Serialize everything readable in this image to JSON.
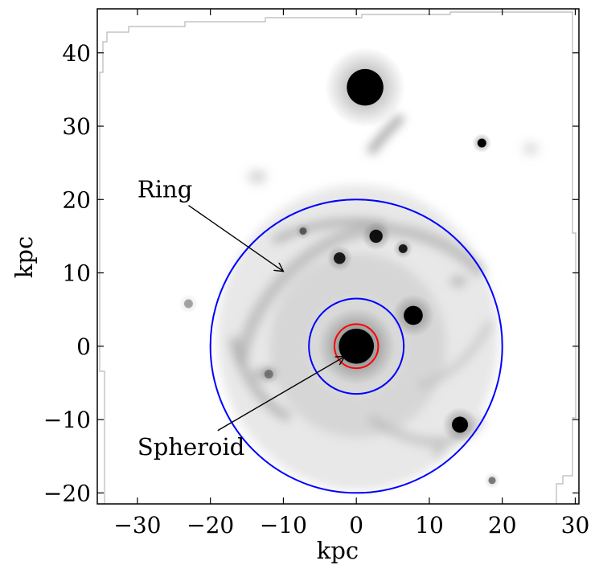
{
  "plot": {
    "xlabel": "kpc",
    "ylabel": "kpc",
    "xlim": [
      -35.5,
      30.5
    ],
    "ylim": [
      -21.5,
      46
    ],
    "xticks": [
      {
        "value": -30,
        "label": "−30"
      },
      {
        "value": -20,
        "label": "−20"
      },
      {
        "value": -10,
        "label": "−10"
      },
      {
        "value": 0,
        "label": "0"
      },
      {
        "value": 10,
        "label": "10"
      },
      {
        "value": 20,
        "label": "20"
      },
      {
        "value": 30,
        "label": "30"
      }
    ],
    "yticks": [
      {
        "value": -20,
        "label": "−20"
      },
      {
        "value": -10,
        "label": "−10"
      },
      {
        "value": 0,
        "label": "0"
      },
      {
        "value": 10,
        "label": "10"
      },
      {
        "value": 20,
        "label": "20"
      },
      {
        "value": 30,
        "label": "30"
      },
      {
        "value": 40,
        "label": "40"
      }
    ]
  },
  "apertures": [
    {
      "name": "outer-ring-aperture",
      "center": [
        0,
        0
      ],
      "radius_kpc": 20,
      "color": "#0000ff"
    },
    {
      "name": "inner-ring-aperture",
      "center": [
        0,
        0
      ],
      "radius_kpc": 6.5,
      "color": "#0000ff"
    },
    {
      "name": "spheroid-aperture",
      "center": [
        0,
        0
      ],
      "radius_kpc": 3,
      "color": "#ff0000"
    }
  ],
  "annotations": [
    {
      "name": "ring-annotation",
      "label": "Ring",
      "text_at": [
        -30,
        20.3
      ],
      "arrow_from": [
        -23,
        19.2
      ],
      "arrow_to": [
        -10,
        10.2
      ]
    },
    {
      "name": "spheroid-annotation",
      "label": "Spheroid",
      "text_at": [
        -30,
        -14.8
      ],
      "arrow_from": [
        -19,
        -11.5
      ],
      "arrow_to": [
        -1.6,
        -1.4
      ]
    }
  ],
  "sources": [
    {
      "name": "galaxy-core",
      "x": 0,
      "y": 0,
      "r": 2.4,
      "opacity": 1
    },
    {
      "name": "bright-star-top",
      "x": 1.2,
      "y": 35.3,
      "r": 2.5,
      "opacity": 1
    },
    {
      "name": "star-right-upper",
      "x": 17.2,
      "y": 27.7,
      "r": 0.6,
      "opacity": 1
    },
    {
      "name": "star-right-mid",
      "x": 7.8,
      "y": 4.2,
      "r": 1.3,
      "opacity": 1
    },
    {
      "name": "star-lower-right",
      "x": 14.2,
      "y": -10.7,
      "r": 1.1,
      "opacity": 1
    },
    {
      "name": "knot-1",
      "x": 2.7,
      "y": 15.0,
      "r": 0.9,
      "opacity": 0.9
    },
    {
      "name": "knot-2",
      "x": -2.3,
      "y": 12.0,
      "r": 0.8,
      "opacity": 0.85
    },
    {
      "name": "knot-3",
      "x": 6.4,
      "y": 13.3,
      "r": 0.6,
      "opacity": 0.85
    },
    {
      "name": "knot-4",
      "x": -7.3,
      "y": 15.7,
      "r": 0.5,
      "opacity": 0.5
    },
    {
      "name": "knot-5",
      "x": 18.6,
      "y": -18.3,
      "r": 0.5,
      "opacity": 0.45
    },
    {
      "name": "knot-6",
      "x": -23.0,
      "y": 5.8,
      "r": 0.6,
      "opacity": 0.3
    },
    {
      "name": "knot-7",
      "x": -12.0,
      "y": -3.8,
      "r": 0.6,
      "opacity": 0.35
    }
  ]
}
